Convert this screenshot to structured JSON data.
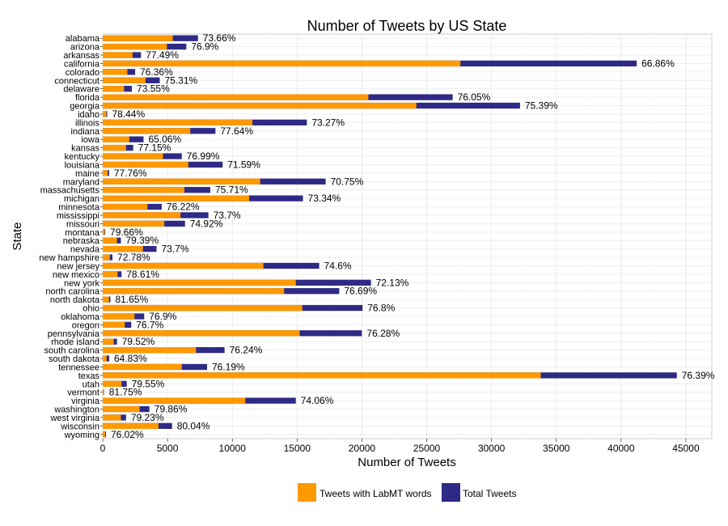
{
  "chart_data": {
    "type": "bar",
    "orientation": "horizontal",
    "title": "Number of Tweets by US State",
    "xlabel": "Number of Tweets",
    "ylabel": "State",
    "xlim": [
      0,
      47000
    ],
    "x_ticks": [
      0,
      5000,
      10000,
      15000,
      20000,
      25000,
      30000,
      35000,
      40000,
      45000
    ],
    "grid": true,
    "legend_position": "bottom",
    "colors": {
      "labmt": "#FF9900",
      "total": "#2E2A85",
      "grid": "#EBEBEB",
      "panel_border": "#CCCCCC"
    },
    "series": [
      {
        "name": "Tweets with LabMT words",
        "key": "labmt"
      },
      {
        "name": "Total Tweets",
        "key": "total"
      }
    ],
    "rows": [
      {
        "state": "wyoming",
        "labmt": 190,
        "total": 250,
        "pct": "76.02%"
      },
      {
        "state": "wisconsin",
        "labmt": 4300,
        "total": 5350,
        "pct": "80.04%"
      },
      {
        "state": "west virginia",
        "labmt": 1400,
        "total": 1800,
        "pct": "79.23%"
      },
      {
        "state": "washington",
        "labmt": 2850,
        "total": 3600,
        "pct": "79.86%"
      },
      {
        "state": "virginia",
        "labmt": 11000,
        "total": 14900,
        "pct": "74.06%"
      },
      {
        "state": "vermont",
        "labmt": 90,
        "total": 110,
        "pct": "81.75%"
      },
      {
        "state": "utah",
        "labmt": 1450,
        "total": 1850,
        "pct": "79.55%"
      },
      {
        "state": "texas",
        "labmt": 33800,
        "total": 44300,
        "pct": "76.39%"
      },
      {
        "state": "tennessee",
        "labmt": 6100,
        "total": 8050,
        "pct": "76.19%"
      },
      {
        "state": "south dakota",
        "labmt": 300,
        "total": 500,
        "pct": "64.83%"
      },
      {
        "state": "south carolina",
        "labmt": 7200,
        "total": 9400,
        "pct": "76.24%"
      },
      {
        "state": "rhode island",
        "labmt": 850,
        "total": 1100,
        "pct": "79.52%"
      },
      {
        "state": "pennsylvania",
        "labmt": 15200,
        "total": 20000,
        "pct": "76.28%"
      },
      {
        "state": "oregon",
        "labmt": 1700,
        "total": 2200,
        "pct": "76.7%"
      },
      {
        "state": "oklahoma",
        "labmt": 2450,
        "total": 3200,
        "pct": "76.9%"
      },
      {
        "state": "ohio",
        "labmt": 15400,
        "total": 20050,
        "pct": "76.8%"
      },
      {
        "state": "north dakota",
        "labmt": 480,
        "total": 590,
        "pct": "81.65%"
      },
      {
        "state": "north carolina",
        "labmt": 14000,
        "total": 18250,
        "pct": "76.69%"
      },
      {
        "state": "new york",
        "labmt": 14900,
        "total": 20700,
        "pct": "72.13%"
      },
      {
        "state": "new mexico",
        "labmt": 1150,
        "total": 1450,
        "pct": "78.61%"
      },
      {
        "state": "new jersey",
        "labmt": 12400,
        "total": 16700,
        "pct": "74.6%"
      },
      {
        "state": "new hampshire",
        "labmt": 550,
        "total": 750,
        "pct": "72.78%"
      },
      {
        "state": "nevada",
        "labmt": 3100,
        "total": 4150,
        "pct": "73.7%"
      },
      {
        "state": "nebraska",
        "labmt": 1100,
        "total": 1400,
        "pct": "79.39%"
      },
      {
        "state": "montana",
        "labmt": 150,
        "total": 190,
        "pct": "79.66%"
      },
      {
        "state": "missouri",
        "labmt": 4750,
        "total": 6350,
        "pct": "74.92%"
      },
      {
        "state": "mississippi",
        "labmt": 6000,
        "total": 8150,
        "pct": "73.7%"
      },
      {
        "state": "minnesota",
        "labmt": 3450,
        "total": 4550,
        "pct": "76.22%"
      },
      {
        "state": "michigan",
        "labmt": 11300,
        "total": 15450,
        "pct": "73.34%"
      },
      {
        "state": "massachusetts",
        "labmt": 6300,
        "total": 8300,
        "pct": "75.71%"
      },
      {
        "state": "maryland",
        "labmt": 12150,
        "total": 17200,
        "pct": "70.75%"
      },
      {
        "state": "maine",
        "labmt": 380,
        "total": 490,
        "pct": "77.76%"
      },
      {
        "state": "louisiana",
        "labmt": 6600,
        "total": 9250,
        "pct": "71.59%"
      },
      {
        "state": "kentucky",
        "labmt": 4650,
        "total": 6100,
        "pct": "76.99%"
      },
      {
        "state": "kansas",
        "labmt": 1800,
        "total": 2350,
        "pct": "77.15%"
      },
      {
        "state": "iowa",
        "labmt": 2050,
        "total": 3150,
        "pct": "65.06%"
      },
      {
        "state": "indiana",
        "labmt": 6750,
        "total": 8700,
        "pct": "77.64%"
      },
      {
        "state": "illinois",
        "labmt": 11550,
        "total": 15750,
        "pct": "73.27%"
      },
      {
        "state": "idaho",
        "labmt": 270,
        "total": 340,
        "pct": "78.44%"
      },
      {
        "state": "georgia",
        "labmt": 24200,
        "total": 32200,
        "pct": "75.39%"
      },
      {
        "state": "florida",
        "labmt": 20500,
        "total": 27000,
        "pct": "76.05%"
      },
      {
        "state": "delaware",
        "labmt": 1650,
        "total": 2250,
        "pct": "73.55%"
      },
      {
        "state": "connecticut",
        "labmt": 3300,
        "total": 4400,
        "pct": "75.31%"
      },
      {
        "state": "colorado",
        "labmt": 1900,
        "total": 2500,
        "pct": "76.36%"
      },
      {
        "state": "california",
        "labmt": 27600,
        "total": 41200,
        "pct": "66.86%"
      },
      {
        "state": "arkansas",
        "labmt": 2300,
        "total": 2950,
        "pct": "77.49%"
      },
      {
        "state": "arizona",
        "labmt": 4950,
        "total": 6450,
        "pct": "76.9%"
      },
      {
        "state": "alabama",
        "labmt": 5400,
        "total": 7350,
        "pct": "73.66%"
      }
    ]
  }
}
